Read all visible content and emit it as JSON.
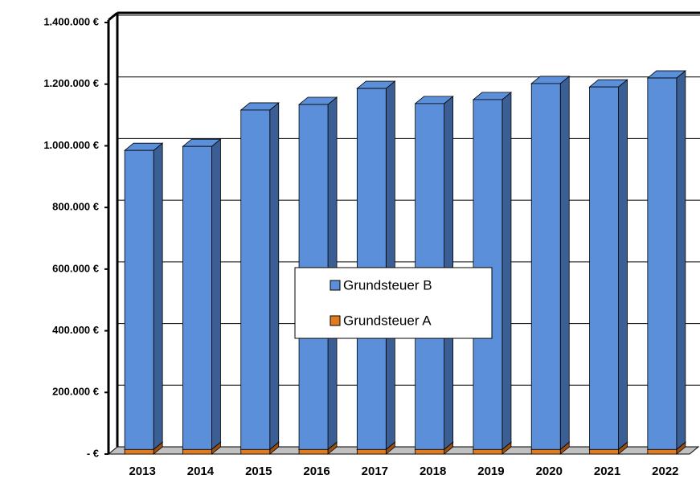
{
  "chart_data": {
    "type": "bar3d_stacked",
    "categories": [
      "2013",
      "2014",
      "2015",
      "2016",
      "2017",
      "2018",
      "2019",
      "2020",
      "2021",
      "2022"
    ],
    "series": [
      {
        "name": "Grundsteuer A",
        "color": "#e07b20",
        "side": "#9a4f10",
        "values": [
          15000,
          15000,
          15000,
          15000,
          15000,
          15000,
          15000,
          15000,
          15000,
          15000
        ]
      },
      {
        "name": "Grundsteuer B",
        "color": "#5b8fd9",
        "side": "#3b5f94",
        "values": [
          970000,
          983000,
          1101000,
          1119000,
          1171000,
          1122000,
          1135000,
          1187000,
          1176000,
          1205000
        ]
      }
    ],
    "ylim": [
      0,
      1400000
    ],
    "yticks": [
      {
        "value": 0,
        "label": "- €"
      },
      {
        "value": 200000,
        "label": "200.000 €"
      },
      {
        "value": 400000,
        "label": "400.000 €"
      },
      {
        "value": 600000,
        "label": "600.000 €"
      },
      {
        "value": 800000,
        "label": "800.000 €"
      },
      {
        "value": 1000000,
        "label": "1.000.000 €"
      },
      {
        "value": 1200000,
        "label": "1.200.000 €"
      },
      {
        "value": 1400000,
        "label": "1.400.000 €"
      }
    ],
    "grid": true,
    "legend": "center"
  }
}
